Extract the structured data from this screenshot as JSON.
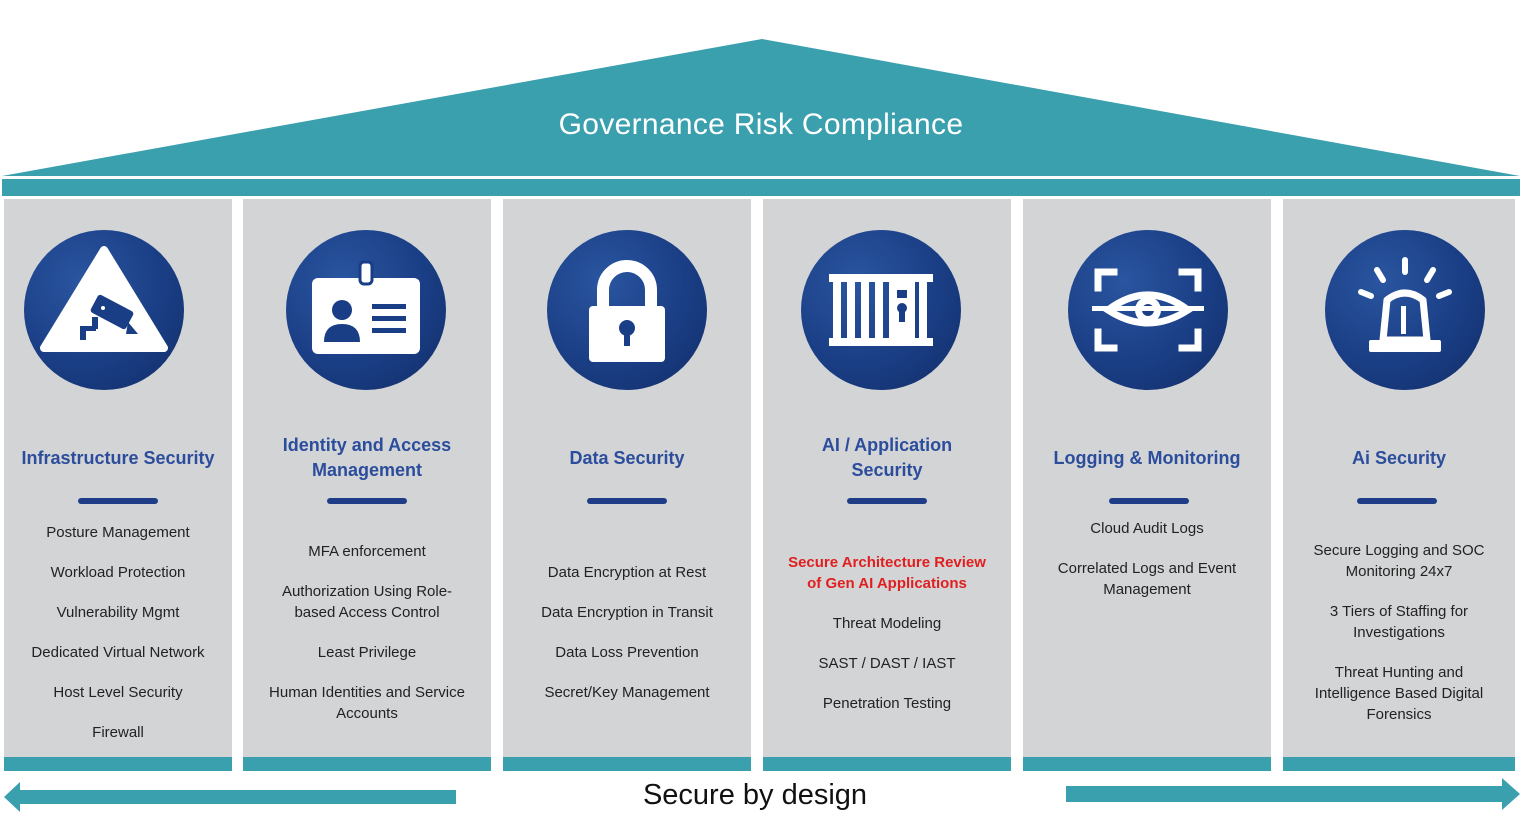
{
  "roof": {
    "title": "Governance Risk Compliance"
  },
  "pillars": [
    {
      "title": "Infrastructure Security",
      "icon": "surveillance-camera-warning-icon",
      "items": [
        "Posture Management",
        "Workload Protection",
        "Vulnerability Mgmt",
        "Dedicated Virtual Network",
        "Host Level Security",
        "Firewall"
      ]
    },
    {
      "title": "Identity and Access Management",
      "icon": "id-badge-icon",
      "items": [
        "MFA enforcement",
        "Authorization Using Role-based Access Control",
        "Least Privilege",
        "Human Identities and Service Accounts"
      ]
    },
    {
      "title": "Data Security",
      "icon": "padlock-icon",
      "items": [
        "Data Encryption at Rest",
        "Data Encryption in Transit",
        "Data Loss Prevention",
        "Secret/Key Management"
      ]
    },
    {
      "title": "AI / Application Security",
      "icon": "firewall-bars-lock-icon",
      "items": [
        "Secure Architecture Review of Gen AI Applications",
        "Threat Modeling",
        "SAST / DAST / IAST",
        "Penetration Testing"
      ],
      "highlight_color": "#e02020"
    },
    {
      "title": "Logging & Monitoring",
      "icon": "eye-scan-icon",
      "items": [
        "Cloud Audit Logs",
        "Correlated Logs and Event Management"
      ]
    },
    {
      "title": "Ai Security",
      "icon": "alarm-siren-icon",
      "items": [
        "Secure Logging and SOC Monitoring 24x7",
        "3 Tiers of Staffing for Investigations",
        "Threat Hunting and Intelligence Based Digital Forensics"
      ]
    }
  ],
  "footer": {
    "label": "Secure by design"
  },
  "colors": {
    "teal": "#3aa0ae",
    "pillar_bg": "#d3d4d6",
    "navy": "#1a3e85",
    "title_blue": "#2b4d9c",
    "highlight_red": "#e02020"
  }
}
